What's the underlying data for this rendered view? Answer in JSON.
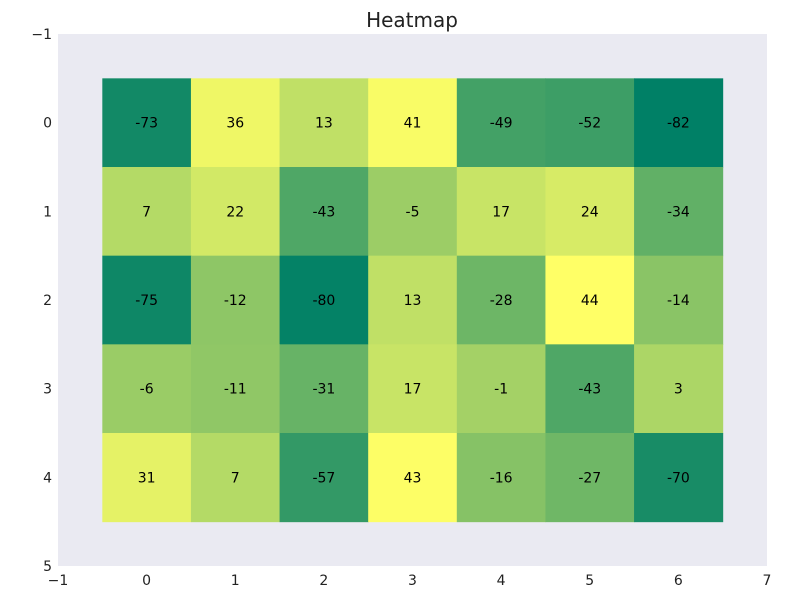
{
  "chart_data": {
    "type": "heatmap",
    "title": "Heatmap",
    "xlabel": "",
    "ylabel": "",
    "xlim": [
      -1,
      7
    ],
    "ylim": [
      -1,
      5
    ],
    "y_inverted": true,
    "x_ticks": [
      "−1",
      "0",
      "1",
      "2",
      "3",
      "4",
      "5",
      "6",
      "7"
    ],
    "y_ticks": [
      "−1",
      "0",
      "1",
      "2",
      "3",
      "4",
      "5"
    ],
    "colormap": "summer",
    "color_range": [
      -82,
      44
    ],
    "grid": false,
    "values": [
      [
        -73,
        36,
        13,
        41,
        -49,
        -52,
        -82
      ],
      [
        7,
        22,
        -43,
        -5,
        17,
        24,
        -34
      ],
      [
        -75,
        -12,
        -80,
        13,
        -28,
        44,
        -14
      ],
      [
        -6,
        -11,
        -31,
        17,
        -1,
        -43,
        3
      ],
      [
        31,
        7,
        -57,
        43,
        -16,
        -27,
        -70
      ]
    ],
    "colors": {
      "axes_background": "#eaeaf2",
      "low": "#008066",
      "high": "#ffff66"
    }
  }
}
